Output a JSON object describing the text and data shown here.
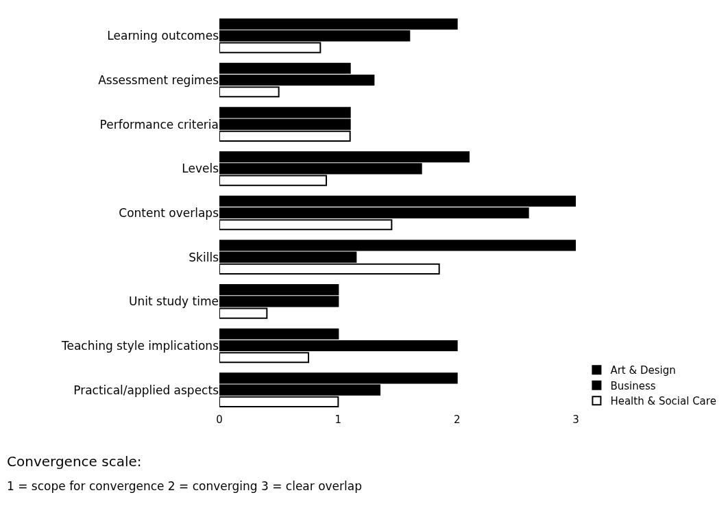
{
  "chart_data": {
    "type": "bar",
    "orientation": "horizontal",
    "categories": [
      "Learning outcomes",
      "Assessment regimes",
      "Performance criteria",
      "Levels",
      "Content overlaps",
      "Skills",
      "Unit study time",
      "Teaching style implications",
      "Practical/applied aspects"
    ],
    "series": [
      {
        "name": "Art & Design",
        "color": "#000000",
        "values": [
          2.0,
          1.1,
          1.1,
          2.1,
          3.0,
          3.0,
          1.0,
          1.0,
          2.0
        ]
      },
      {
        "name": "Business",
        "color": "#000000",
        "values": [
          1.6,
          1.3,
          1.1,
          1.7,
          2.6,
          1.15,
          1.0,
          2.0,
          1.35
        ]
      },
      {
        "name": "Health & Social Care",
        "color": "#ffffff",
        "values": [
          0.85,
          0.5,
          1.1,
          0.9,
          1.45,
          1.85,
          0.4,
          0.75,
          1.0
        ]
      }
    ],
    "xlim": [
      0,
      3
    ],
    "xticks": [
      0,
      1,
      2,
      3
    ],
    "legend": "bottom right",
    "annotations": [
      "Convergence scale:",
      "1 = scope for convergence 2 = converging 3 = clear overlap"
    ]
  }
}
